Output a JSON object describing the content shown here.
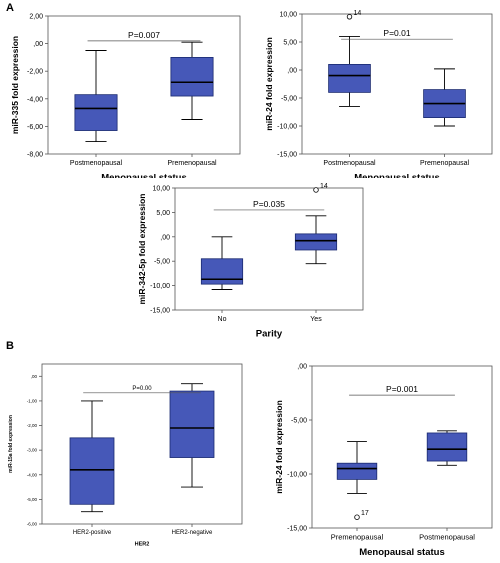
{
  "panel_labels": {
    "a": "A",
    "b": "B"
  },
  "colors": {
    "box_fill": "#4658b8",
    "box_stroke": "#1a2a70",
    "axis": "#555555",
    "text": "#000000"
  },
  "chart_data": [
    {
      "id": "c1",
      "type": "box",
      "xlabel": "Menopausal status",
      "ylabel": "miR-335 fold expression",
      "ylim": [
        -8,
        2
      ],
      "yticks": [
        -8,
        -6,
        -4,
        -2,
        0,
        2
      ],
      "ytick_labels": [
        "-8,00",
        "-6,00",
        "-4,00",
        "-2,00",
        ",00",
        "2,00"
      ],
      "categories": [
        "Postmenopausal",
        "Premenopausal"
      ],
      "boxes": [
        {
          "min": -7.1,
          "q1": -6.3,
          "median": -4.7,
          "q3": -3.7,
          "max": -0.5
        },
        {
          "min": -5.5,
          "q1": -3.8,
          "median": -2.8,
          "q3": -1.0,
          "max": 0.1
        }
      ],
      "outliers": [],
      "annotation": "P=0.007"
    },
    {
      "id": "c2",
      "type": "box",
      "xlabel": "Menopausal status",
      "ylabel": "miR-24 fold expression",
      "ylim": [
        -15,
        10
      ],
      "yticks": [
        -15,
        -10,
        -5,
        0,
        5,
        10
      ],
      "ytick_labels": [
        "-15,00",
        "-10,00",
        "-5,00",
        ",00",
        "5,00",
        "10,00"
      ],
      "categories": [
        "Postmenopausal",
        "Premenopausal"
      ],
      "boxes": [
        {
          "min": -6.5,
          "q1": -4.0,
          "median": -1.0,
          "q3": 1.0,
          "max": 6.0
        },
        {
          "min": -10.0,
          "q1": -8.5,
          "median": -6.0,
          "q3": -3.5,
          "max": 0.2
        }
      ],
      "outliers": [
        {
          "group": 0,
          "value": 9.5,
          "label": "14"
        }
      ],
      "annotation": "P=0.01"
    },
    {
      "id": "c3",
      "type": "box",
      "xlabel": "Parity",
      "ylabel": "miR-342-5p fold expression",
      "ylim": [
        -15,
        10
      ],
      "yticks": [
        -15,
        -10,
        -5,
        0,
        5,
        10
      ],
      "ytick_labels": [
        "-15,00",
        "-10,00",
        "-5,00",
        ",00",
        "5,00",
        "10,00"
      ],
      "categories": [
        "No",
        "Yes"
      ],
      "boxes": [
        {
          "min": -10.8,
          "q1": -9.7,
          "median": -8.7,
          "q3": -4.5,
          "max": 0.0
        },
        {
          "min": -5.5,
          "q1": -2.7,
          "median": -0.8,
          "q3": 0.6,
          "max": 4.3
        }
      ],
      "outliers": [
        {
          "group": 1,
          "value": 9.6,
          "label": "14"
        }
      ],
      "annotation": "P=0.035"
    },
    {
      "id": "c4",
      "type": "box",
      "xlabel": "HER2",
      "ylabel": "miR-15a fold expression",
      "ylim": [
        -6,
        0.5
      ],
      "yticks": [
        -6,
        -5,
        -4,
        -3,
        -2,
        -1,
        0
      ],
      "ytick_labels": [
        "-6,00",
        "-5,00",
        "-4,00",
        "-3,00",
        "-2,00",
        "-1,00",
        ",00"
      ],
      "categories": [
        "HER2-positive",
        "HER2-negative"
      ],
      "boxes": [
        {
          "min": -5.5,
          "q1": -5.2,
          "median": -3.8,
          "q3": -2.5,
          "max": -1.0
        },
        {
          "min": -4.5,
          "q1": -3.3,
          "median": -2.1,
          "q3": -0.6,
          "max": -0.3
        }
      ],
      "outliers": [],
      "annotation": "P=0.00"
    },
    {
      "id": "c5",
      "type": "box",
      "xlabel": "Menopausal status",
      "ylabel": "miR-24 fold expression",
      "ylim": [
        -15,
        0
      ],
      "yticks": [
        -15,
        -10,
        -5,
        0
      ],
      "ytick_labels": [
        "-15,00",
        "-10,00",
        "-5,00",
        ",00"
      ],
      "categories": [
        "Premenopausal",
        "Postmenopausal"
      ],
      "boxes": [
        {
          "min": -11.8,
          "q1": -10.5,
          "median": -9.5,
          "q3": -9.0,
          "max": -7.0
        },
        {
          "min": -9.2,
          "q1": -8.8,
          "median": -7.7,
          "q3": -6.2,
          "max": -6.0
        }
      ],
      "outliers": [
        {
          "group": 0,
          "value": -14.0,
          "label": "17"
        }
      ],
      "annotation": "P=0.001"
    }
  ]
}
